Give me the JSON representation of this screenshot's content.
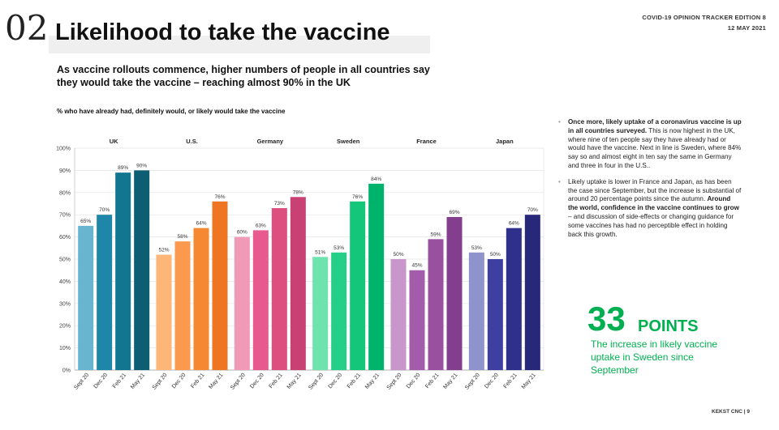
{
  "header": {
    "section_number": "02",
    "title": "Likelihood to take the vaccine",
    "tracker": "COVID-19 OPINION TRACKER EDITION  8",
    "date": "12 MAY 2021"
  },
  "subtitle": "As vaccine rollouts commence, higher numbers of people in all countries say they would take the vaccine – reaching almost 90% in the UK",
  "chart_label": "% who have already had, definitely would, or likely would take the vaccine",
  "chart_data": {
    "type": "bar",
    "categories": [
      "Sept 20",
      "Dec 20",
      "Feb 21",
      "May 21"
    ],
    "groups": [
      {
        "name": "UK",
        "values": [
          65,
          70,
          89,
          90
        ],
        "colors": [
          "#68b5cf",
          "#1d86a9",
          "#137691",
          "#0d5e72"
        ]
      },
      {
        "name": "U.S.",
        "values": [
          52,
          58,
          64,
          76
        ],
        "colors": [
          "#fdb677",
          "#fb9a4f",
          "#f58831",
          "#ee7623"
        ]
      },
      {
        "name": "Germany",
        "values": [
          60,
          63,
          73,
          78
        ],
        "colors": [
          "#f19ab8",
          "#e85a8d",
          "#dd4f7f",
          "#c94073"
        ]
      },
      {
        "name": "Sweden",
        "values": [
          51,
          53,
          76,
          84
        ],
        "colors": [
          "#6ee3ae",
          "#24cf87",
          "#13c67a",
          "#00b36c"
        ]
      },
      {
        "name": "France",
        "values": [
          50,
          45,
          59,
          69
        ],
        "colors": [
          "#c996cb",
          "#a35bab",
          "#98509f",
          "#833e8e"
        ]
      },
      {
        "name": "Japan",
        "values": [
          53,
          50,
          64,
          70
        ],
        "colors": [
          "#8e92cd",
          "#3f3fa1",
          "#2f2f8c",
          "#28287a"
        ]
      }
    ],
    "ylim": [
      0,
      100
    ],
    "yticks": [
      "0%",
      "10%",
      "20%",
      "30%",
      "40%",
      "50%",
      "60%",
      "70%",
      "80%",
      "90%",
      "100%"
    ],
    "value_suffix": "%"
  },
  "bullets": [
    {
      "bold": "Once more, likely uptake of a coronavirus vaccine is up in all countries surveyed.",
      "text": " This is now highest in the UK, where nine of ten people say they have already had or would have the vaccine. Next in line is Sweden, where 84% say so and almost eight in ten say the same in Germany and three in four in the U.S.."
    },
    {
      "pre": "Likely uptake is lower in France and Japan, as has been the case since September, but the increase is substantial of around 20 percentage points since the autumn. ",
      "bold": "Around the world, confidence in the vaccine continues to grow",
      "post": " – and discussion of side-effects or changing guidance for some vaccines has had no perceptible effect in holding back this growth."
    }
  ],
  "stat": {
    "number": "33",
    "unit": "POINTS",
    "description": "The increase in likely vaccine uptake in Sweden since September",
    "color": "#00b050"
  },
  "footer": "KEKST CNC | 9"
}
